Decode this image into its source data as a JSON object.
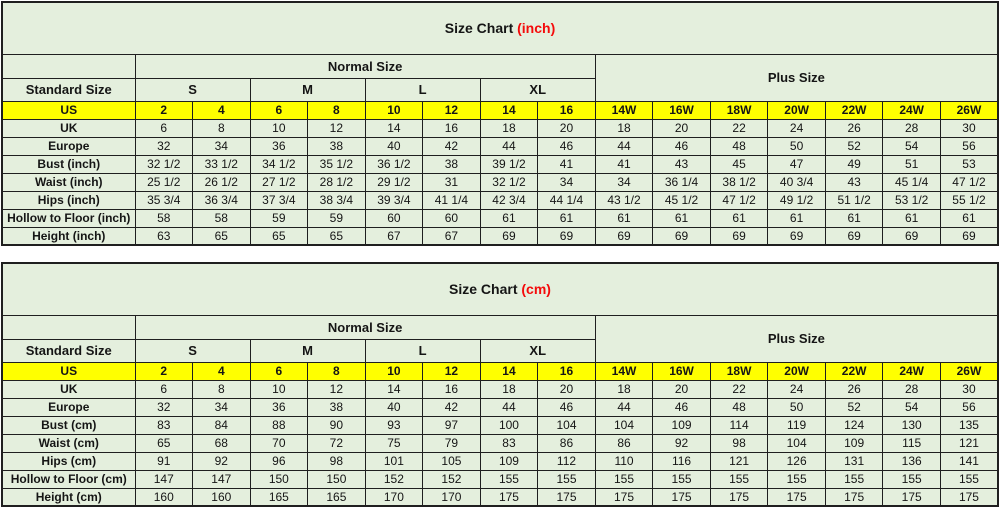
{
  "colors": {
    "page_bg": "#ffffff",
    "table_bg": "#e4efdd",
    "highlight_row_bg": "#ffff00",
    "border": "#1f1f1f",
    "text": "#151515",
    "title_accent_red": "#f40b0b"
  },
  "chart_data": [
    {
      "type": "table",
      "title": "Size Chart",
      "unit": "(inch)",
      "header": {
        "normal": "Normal Size",
        "plus": "Plus Size",
        "standard": "Standard Size",
        "sizes": [
          "S",
          "M",
          "L",
          "XL"
        ]
      },
      "rows": [
        {
          "label": "US",
          "highlight": true,
          "values": [
            "2",
            "4",
            "6",
            "8",
            "10",
            "12",
            "14",
            "16",
            "14W",
            "16W",
            "18W",
            "20W",
            "22W",
            "24W",
            "26W"
          ]
        },
        {
          "label": "UK",
          "values": [
            "6",
            "8",
            "10",
            "12",
            "14",
            "16",
            "18",
            "20",
            "18",
            "20",
            "22",
            "24",
            "26",
            "28",
            "30"
          ]
        },
        {
          "label": "Europe",
          "values": [
            "32",
            "34",
            "36",
            "38",
            "40",
            "42",
            "44",
            "46",
            "44",
            "46",
            "48",
            "50",
            "52",
            "54",
            "56"
          ]
        },
        {
          "label": "Bust (inch)",
          "values": [
            "32 1/2",
            "33 1/2",
            "34 1/2",
            "35 1/2",
            "36 1/2",
            "38",
            "39 1/2",
            "41",
            "41",
            "43",
            "45",
            "47",
            "49",
            "51",
            "53"
          ]
        },
        {
          "label": "Waist (inch)",
          "values": [
            "25 1/2",
            "26 1/2",
            "27 1/2",
            "28 1/2",
            "29 1/2",
            "31",
            "32 1/2",
            "34",
            "34",
            "36 1/4",
            "38 1/2",
            "40 3/4",
            "43",
            "45 1/4",
            "47 1/2"
          ]
        },
        {
          "label": "Hips (inch)",
          "values": [
            "35 3/4",
            "36 3/4",
            "37 3/4",
            "38 3/4",
            "39 3/4",
            "41 1/4",
            "42 3/4",
            "44 1/4",
            "43 1/2",
            "45 1/2",
            "47 1/2",
            "49 1/2",
            "51 1/2",
            "53 1/2",
            "55 1/2"
          ]
        },
        {
          "label": "Hollow to Floor (inch)",
          "values": [
            "58",
            "58",
            "59",
            "59",
            "60",
            "60",
            "61",
            "61",
            "61",
            "61",
            "61",
            "61",
            "61",
            "61",
            "61"
          ]
        },
        {
          "label": "Height (inch)",
          "values": [
            "63",
            "65",
            "65",
            "65",
            "67",
            "67",
            "69",
            "69",
            "69",
            "69",
            "69",
            "69",
            "69",
            "69",
            "69"
          ]
        }
      ]
    },
    {
      "type": "table",
      "title": "Size Chart",
      "unit": "(cm)",
      "header": {
        "normal": "Normal Size",
        "plus": "Plus Size",
        "standard": "Standard Size",
        "sizes": [
          "S",
          "M",
          "L",
          "XL"
        ]
      },
      "rows": [
        {
          "label": "US",
          "highlight": true,
          "values": [
            "2",
            "4",
            "6",
            "8",
            "10",
            "12",
            "14",
            "16",
            "14W",
            "16W",
            "18W",
            "20W",
            "22W",
            "24W",
            "26W"
          ]
        },
        {
          "label": "UK",
          "values": [
            "6",
            "8",
            "10",
            "12",
            "14",
            "16",
            "18",
            "20",
            "18",
            "20",
            "22",
            "24",
            "26",
            "28",
            "30"
          ]
        },
        {
          "label": "Europe",
          "values": [
            "32",
            "34",
            "36",
            "38",
            "40",
            "42",
            "44",
            "46",
            "44",
            "46",
            "48",
            "50",
            "52",
            "54",
            "56"
          ]
        },
        {
          "label": "Bust (cm)",
          "values": [
            "83",
            "84",
            "88",
            "90",
            "93",
            "97",
            "100",
            "104",
            "104",
            "109",
            "114",
            "119",
            "124",
            "130",
            "135"
          ]
        },
        {
          "label": "Waist (cm)",
          "values": [
            "65",
            "68",
            "70",
            "72",
            "75",
            "79",
            "83",
            "86",
            "86",
            "92",
            "98",
            "104",
            "109",
            "115",
            "121"
          ]
        },
        {
          "label": "Hips (cm)",
          "values": [
            "91",
            "92",
            "96",
            "98",
            "101",
            "105",
            "109",
            "112",
            "110",
            "116",
            "121",
            "126",
            "131",
            "136",
            "141"
          ]
        },
        {
          "label": "Hollow to Floor (cm)",
          "values": [
            "147",
            "147",
            "150",
            "150",
            "152",
            "152",
            "155",
            "155",
            "155",
            "155",
            "155",
            "155",
            "155",
            "155",
            "155"
          ]
        },
        {
          "label": "Height (cm)",
          "values": [
            "160",
            "160",
            "165",
            "165",
            "170",
            "170",
            "175",
            "175",
            "175",
            "175",
            "175",
            "175",
            "175",
            "175",
            "175"
          ]
        }
      ]
    }
  ]
}
